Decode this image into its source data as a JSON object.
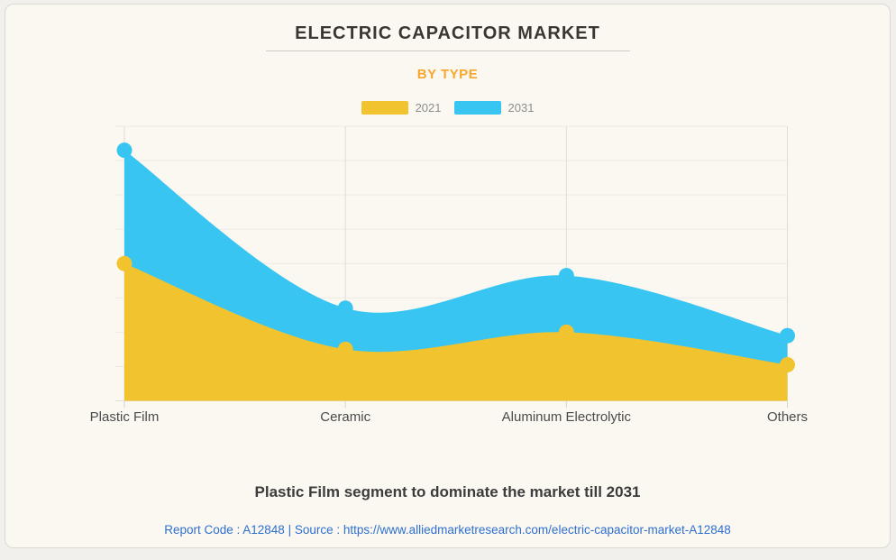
{
  "header": {
    "title": "ELECTRIC CAPACITOR MARKET",
    "section_label": "BY TYPE",
    "title_color": "#3a3632",
    "accent_color": "#f8a72c"
  },
  "chart_data": {
    "type": "area",
    "title": "ELECTRIC CAPACITOR MARKET",
    "subtitle": "BY TYPE",
    "categories": [
      "Plastic Film",
      "Ceramic",
      "Aluminum Electrolytic",
      "Others"
    ],
    "series": [
      {
        "name": "2021",
        "color": "#f1c42f",
        "values": [
          4.0,
          1.5,
          2.0,
          1.05
        ]
      },
      {
        "name": "2031",
        "color": "#38c5f2",
        "values": [
          7.3,
          2.7,
          3.65,
          1.9
        ]
      }
    ],
    "xlabel": "",
    "ylabel": "",
    "ylim": [
      0,
      8
    ],
    "grid": true,
    "legend_position": "top",
    "note": "y-axis has no tick labels; values are relative units estimated against the 8 horizontal grid divisions",
    "grid_color_h": "#edeae2",
    "grid_color_v": "#e0ddd5",
    "axis_color": "#e1ded6",
    "tick_color": "#d8d5cd",
    "xlabel_color": "#4b4b4b"
  },
  "footer": {
    "headline": "Plastic Film segment to dominate the market till 2031",
    "report_line": "Report Code : A12848   |   Source : https://www.alliedmarketresearch.com/electric-capacitor-market-A12848",
    "link_color": "#2e6fd1"
  }
}
